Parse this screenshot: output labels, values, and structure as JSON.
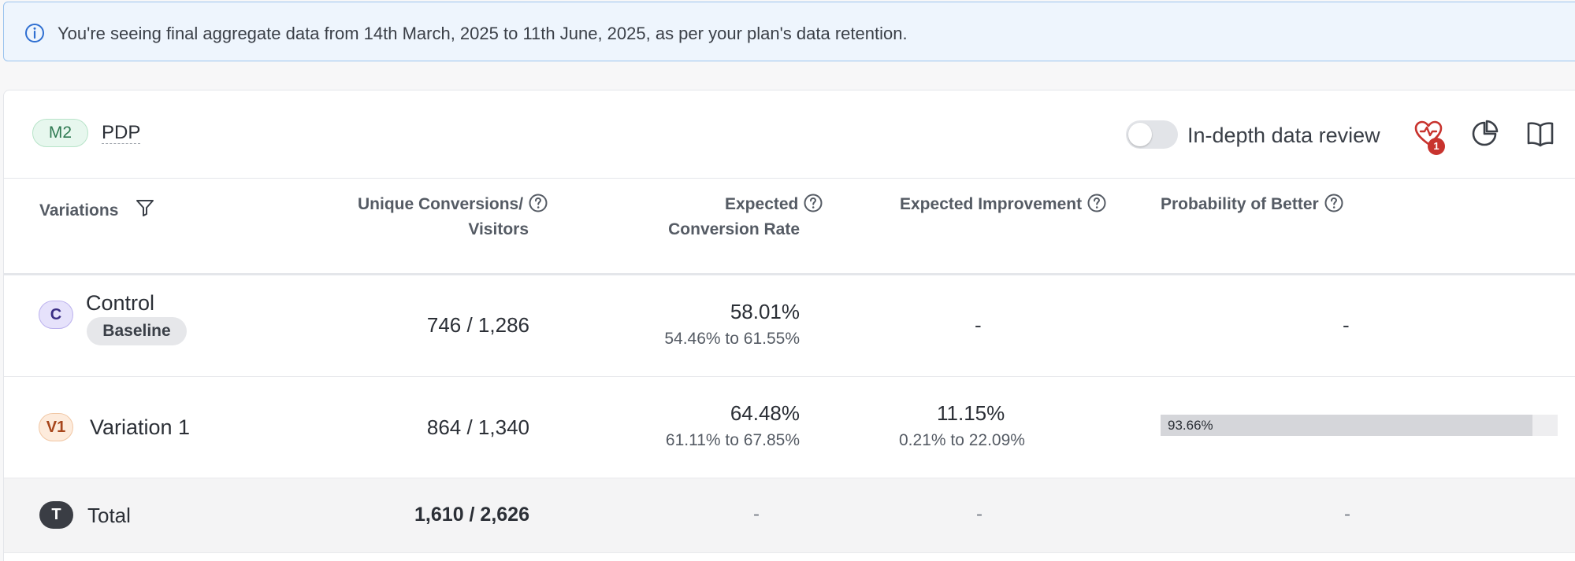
{
  "banner": {
    "icon": "info-circle-icon",
    "message": "You're seeing final aggregate data from 14th March, 2025 to 11th June, 2025, as per your plan's data retention."
  },
  "metric": {
    "tag": "M2",
    "name": "PDP"
  },
  "toolbar": {
    "toggle_label": "In-depth data review",
    "toggle_on": false,
    "health_badge": "1",
    "icons": [
      "heart-pulse-icon",
      "pie-chart-icon",
      "book-icon"
    ]
  },
  "table": {
    "headers": {
      "variations": "Variations",
      "conversions_line1": "Unique Conversions/",
      "conversions_line2": "Visitors",
      "rate_line1": "Expected",
      "rate_line2": "Conversion Rate",
      "improvement": "Expected Improvement",
      "probability": "Probability of Better"
    },
    "rows": [
      {
        "avatar": "C",
        "name": "Control",
        "badge": "Baseline",
        "conversions": "746 / 1,286",
        "rate": "58.01%",
        "rate_range": "54.46% to 61.55%",
        "improvement": "-",
        "probability": "-"
      },
      {
        "avatar": "V1",
        "name": "Variation 1",
        "conversions": "864 / 1,340",
        "rate": "64.48%",
        "rate_range": "61.11% to 67.85%",
        "improvement": "11.15%",
        "improvement_range": "0.21% to 22.09%",
        "probability": "93.66%",
        "probability_value": 0.9366
      }
    ],
    "total": {
      "avatar": "T",
      "name": "Total",
      "conversions": "1,610 / 2,626",
      "rate": "-",
      "improvement": "-",
      "probability": "-"
    }
  },
  "colors": {
    "banner_bg": "#eef5fd",
    "banner_border": "#9cc4ee",
    "control_tag": "#e6e2fb",
    "variation_tag": "#fdebdc",
    "metric_tag": "#e7f7ee",
    "alert_red": "#c8332e"
  }
}
